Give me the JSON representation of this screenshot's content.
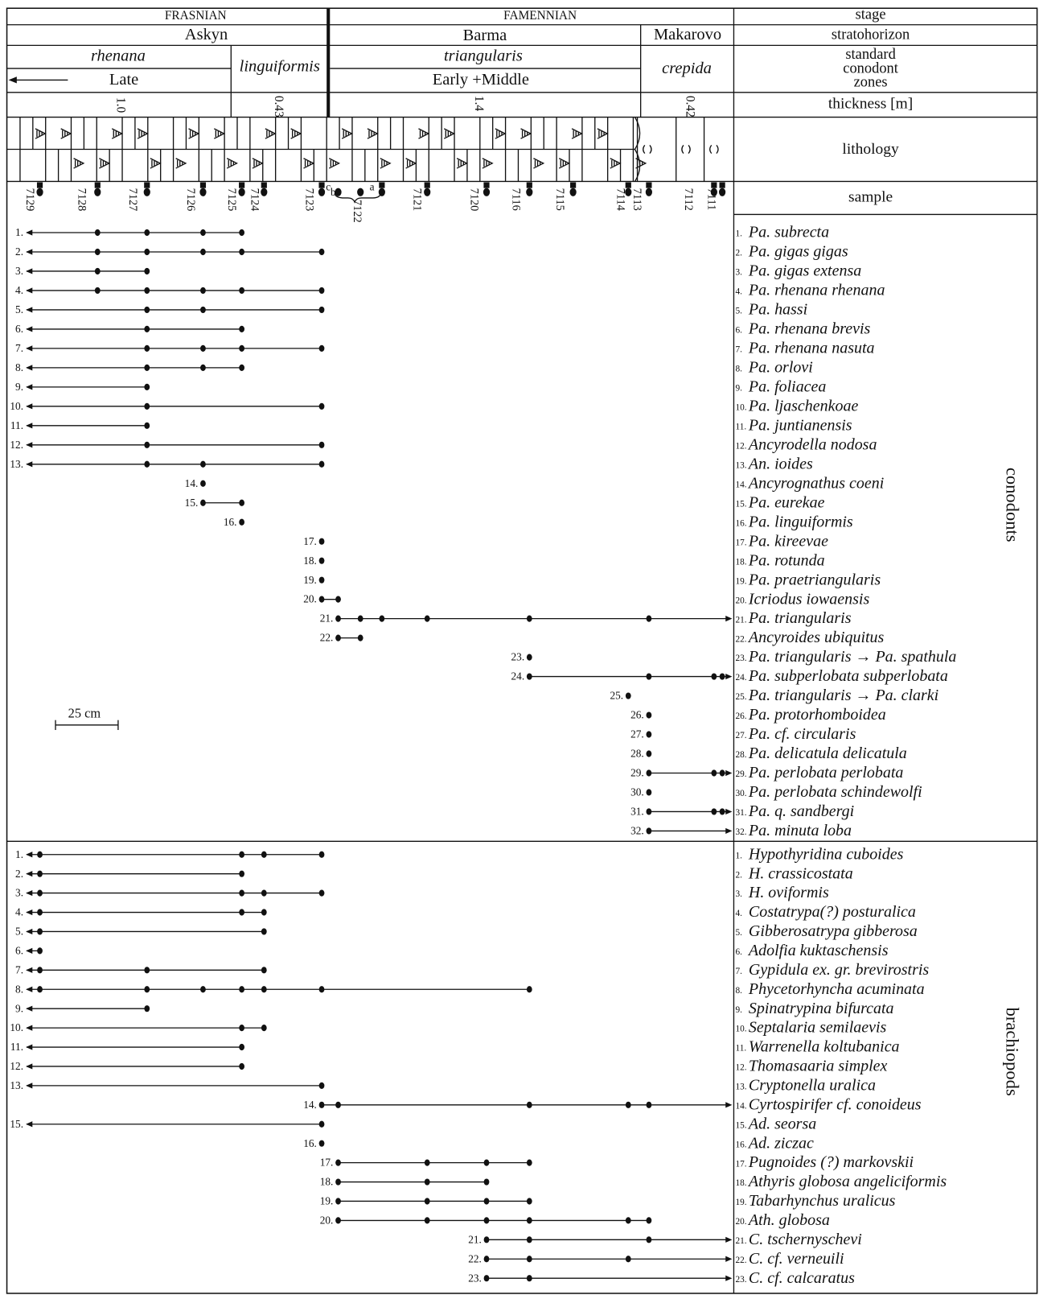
{
  "header": {
    "stage_row": [
      "FRASNIAN",
      "FAMENNIAN",
      "stage"
    ],
    "stratohorizon_row": [
      "Askyn",
      "Barma",
      "Makarovo",
      "stratohorizon"
    ],
    "zones": {
      "rhenana": "rhenana",
      "late": "Late",
      "linguiformis": "linguiformis",
      "triangularis": "triangularis",
      "early_middle": "Early +Middle",
      "crepida": "crepida",
      "label": [
        "standard",
        "conodont",
        "zones"
      ]
    },
    "thickness_row": [
      "1.0",
      "0.43",
      "1.4",
      "0.42",
      "thickness [m]"
    ],
    "lithology": "lithology",
    "sample": "sample",
    "samples": [
      "7129",
      "7128",
      "7127",
      "7126",
      "7125",
      "7124",
      "7123",
      "c",
      "b",
      "a",
      "7122",
      "7121",
      "7120",
      "7116",
      "7115",
      "7114",
      "7113",
      "7112",
      "7111"
    ]
  },
  "scale": "25 cm",
  "conodonts": {
    "label": "conodonts",
    "taxa": [
      {
        "num": "1.",
        "name": "Pa. subrecta",
        "left_arrow": true,
        "right_arrow": false,
        "samples": [
          1,
          2,
          3,
          4
        ]
      },
      {
        "num": "2.",
        "name": "Pa. gigas gigas",
        "left_arrow": true,
        "right_arrow": false,
        "samples": [
          1,
          2,
          3,
          4,
          6
        ]
      },
      {
        "num": "3.",
        "name": "Pa. gigas extensa",
        "left_arrow": true,
        "right_arrow": false,
        "samples": [
          1,
          2
        ]
      },
      {
        "num": "4.",
        "name": "Pa. rhenana rhenana",
        "left_arrow": true,
        "right_arrow": false,
        "samples": [
          1,
          2,
          3,
          4,
          6
        ]
      },
      {
        "num": "5.",
        "name": "Pa. hassi",
        "left_arrow": true,
        "right_arrow": false,
        "samples": [
          2,
          3,
          6
        ]
      },
      {
        "num": "6.",
        "name": "Pa. rhenana brevis",
        "left_arrow": true,
        "right_arrow": false,
        "samples": [
          2,
          4
        ]
      },
      {
        "num": "7.",
        "name": "Pa. rhenana nasuta",
        "left_arrow": true,
        "right_arrow": false,
        "samples": [
          2,
          3,
          4,
          6
        ]
      },
      {
        "num": "8.",
        "name": "Pa. orlovi",
        "left_arrow": true,
        "right_arrow": false,
        "samples": [
          2,
          3,
          4
        ]
      },
      {
        "num": "9.",
        "name": "Pa. foliacea",
        "left_arrow": true,
        "right_arrow": false,
        "samples": [
          2
        ]
      },
      {
        "num": "10.",
        "name": "Pa. ljaschenkoae",
        "left_arrow": true,
        "right_arrow": false,
        "samples": [
          2,
          6
        ]
      },
      {
        "num": "11.",
        "name": "Pa. juntianensis",
        "left_arrow": true,
        "right_arrow": false,
        "samples": [
          2
        ]
      },
      {
        "num": "12.",
        "name": "Ancyrodella nodosa",
        "left_arrow": true,
        "right_arrow": false,
        "samples": [
          2,
          6
        ]
      },
      {
        "num": "13.",
        "name": "An. ioides",
        "left_arrow": true,
        "right_arrow": false,
        "samples": [
          2,
          3,
          6
        ]
      },
      {
        "num": "14.",
        "name": "Ancyrognathus coeni",
        "left_arrow": false,
        "right_arrow": false,
        "samples": [
          3
        ]
      },
      {
        "num": "15.",
        "name": "Pa. eurekae",
        "left_arrow": false,
        "right_arrow": false,
        "samples": [
          3,
          4
        ]
      },
      {
        "num": "16.",
        "name": "Pa. linguiformis",
        "left_arrow": false,
        "right_arrow": false,
        "samples": [
          4
        ]
      },
      {
        "num": "17.",
        "name": "Pa. kireevae",
        "left_arrow": false,
        "right_arrow": false,
        "samples": [
          6
        ]
      },
      {
        "num": "18.",
        "name": "Pa. rotunda",
        "left_arrow": false,
        "right_arrow": false,
        "samples": [
          6
        ]
      },
      {
        "num": "19.",
        "name": "Pa. praetriangularis",
        "left_arrow": false,
        "right_arrow": false,
        "samples": [
          6
        ]
      },
      {
        "num": "20.",
        "name": "Icriodus iowaensis",
        "left_arrow": false,
        "right_arrow": false,
        "samples": [
          6,
          7
        ]
      },
      {
        "num": "21.",
        "name": "Pa. triangularis",
        "left_arrow": false,
        "right_arrow": true,
        "samples": [
          7,
          8,
          9,
          10,
          12,
          15
        ]
      },
      {
        "num": "22.",
        "name": "Ancyroides ubiquitus",
        "left_arrow": false,
        "right_arrow": false,
        "samples": [
          7,
          8
        ]
      },
      {
        "num": "23.",
        "name": "Pa. triangularis → Pa. spathula",
        "left_arrow": false,
        "right_arrow": false,
        "samples": [
          12
        ]
      },
      {
        "num": "24.",
        "name": "Pa. subperlobata subperlobata",
        "left_arrow": false,
        "right_arrow": true,
        "samples": [
          12,
          15,
          16,
          17
        ]
      },
      {
        "num": "25.",
        "name": "Pa. triangularis → Pa. clarki",
        "left_arrow": false,
        "right_arrow": false,
        "samples": [
          14
        ]
      },
      {
        "num": "26.",
        "name": "Pa. protorhomboidea",
        "left_arrow": false,
        "right_arrow": false,
        "samples": [
          15
        ]
      },
      {
        "num": "27.",
        "name": "Pa. cf. circularis",
        "left_arrow": false,
        "right_arrow": false,
        "samples": [
          15
        ]
      },
      {
        "num": "28.",
        "name": "Pa. delicatula delicatula",
        "left_arrow": false,
        "right_arrow": false,
        "samples": [
          15
        ]
      },
      {
        "num": "29.",
        "name": "Pa. perlobata perlobata",
        "left_arrow": false,
        "right_arrow": true,
        "samples": [
          15,
          16,
          17
        ]
      },
      {
        "num": "30.",
        "name": "Pa. perlobata schindewolfi",
        "left_arrow": false,
        "right_arrow": false,
        "samples": [
          15
        ]
      },
      {
        "num": "31.",
        "name": "Pa. q. sandbergi",
        "left_arrow": false,
        "right_arrow": true,
        "samples": [
          15,
          16,
          17
        ]
      },
      {
        "num": "32.",
        "name": "Pa. minuta loba",
        "left_arrow": false,
        "right_arrow": true,
        "samples": [
          15
        ]
      }
    ]
  },
  "brachiopods": {
    "label": "brachiopods",
    "taxa": [
      {
        "num": "1.",
        "name": "Hypothyridina cuboides",
        "left_arrow": true,
        "right_arrow": false,
        "samples": [
          0,
          4,
          5,
          6
        ]
      },
      {
        "num": "2.",
        "name": "H. crassicostata",
        "left_arrow": true,
        "right_arrow": false,
        "samples": [
          0,
          4
        ]
      },
      {
        "num": "3.",
        "name": "H. oviformis",
        "left_arrow": true,
        "right_arrow": false,
        "samples": [
          0,
          4,
          5,
          6
        ]
      },
      {
        "num": "4.",
        "name": "Costatrypa(?) posturalica",
        "left_arrow": true,
        "right_arrow": false,
        "samples": [
          0,
          4,
          5
        ]
      },
      {
        "num": "5.",
        "name": "Gibberosatrypa gibberosa",
        "left_arrow": true,
        "right_arrow": false,
        "samples": [
          0,
          5
        ]
      },
      {
        "num": "6.",
        "name": "Adolfia kuktaschensis",
        "left_arrow": true,
        "right_arrow": false,
        "samples": [
          0
        ]
      },
      {
        "num": "7.",
        "name": "Gypidula ex. gr. brevirostris",
        "left_arrow": true,
        "right_arrow": false,
        "samples": [
          0,
          2,
          5
        ]
      },
      {
        "num": "8.",
        "name": "Phycetorhyncha acuminata",
        "left_arrow": true,
        "right_arrow": false,
        "samples": [
          0,
          2,
          3,
          4,
          5,
          6,
          12
        ]
      },
      {
        "num": "9.",
        "name": "Spinatrypina bifurcata",
        "left_arrow": true,
        "right_arrow": false,
        "samples": [
          2
        ]
      },
      {
        "num": "10.",
        "name": "Septalaria semilaevis",
        "left_arrow": true,
        "right_arrow": false,
        "samples": [
          4,
          5
        ]
      },
      {
        "num": "11.",
        "name": "Warrenella koltubanica",
        "left_arrow": true,
        "right_arrow": false,
        "samples": [
          4
        ]
      },
      {
        "num": "12.",
        "name": "Thomasaaria simplex",
        "left_arrow": true,
        "right_arrow": false,
        "samples": [
          4
        ]
      },
      {
        "num": "13.",
        "name": "Cryptonella uralica",
        "left_arrow": true,
        "right_arrow": false,
        "samples": [
          6
        ]
      },
      {
        "num": "14.",
        "name": "Cyrtospirifer cf. conoideus",
        "left_arrow": false,
        "right_arrow": true,
        "samples": [
          6,
          7,
          12,
          14,
          15
        ]
      },
      {
        "num": "15.",
        "name": "Ad. seorsa",
        "left_arrow": true,
        "right_arrow": false,
        "samples": [
          6
        ]
      },
      {
        "num": "16.",
        "name": "Ad. ziczac",
        "left_arrow": false,
        "right_arrow": false,
        "samples": [
          6
        ]
      },
      {
        "num": "17.",
        "name": "Pugnoides (?) markovskii",
        "left_arrow": false,
        "right_arrow": false,
        "samples": [
          7,
          10,
          11,
          12
        ]
      },
      {
        "num": "18.",
        "name": "Athyris globosa angeliciformis",
        "left_arrow": false,
        "right_arrow": false,
        "samples": [
          7,
          10,
          11
        ]
      },
      {
        "num": "19.",
        "name": "Tabarhynchus uralicus",
        "left_arrow": false,
        "right_arrow": false,
        "samples": [
          7,
          10,
          11,
          12
        ]
      },
      {
        "num": "20.",
        "name": "Ath. globosa",
        "left_arrow": false,
        "right_arrow": false,
        "samples": [
          7,
          10,
          11,
          12,
          14,
          15
        ]
      },
      {
        "num": "21.",
        "name": "C. tschernyschevi",
        "left_arrow": false,
        "right_arrow": true,
        "samples": [
          11,
          12,
          15
        ]
      },
      {
        "num": "22.",
        "name": "C. cf. verneuili",
        "left_arrow": false,
        "right_arrow": true,
        "samples": [
          11,
          12,
          14
        ]
      },
      {
        "num": "23.",
        "name": "C. cf. calcaratus",
        "left_arrow": false,
        "right_arrow": true,
        "samples": [
          11,
          12
        ]
      }
    ]
  }
}
